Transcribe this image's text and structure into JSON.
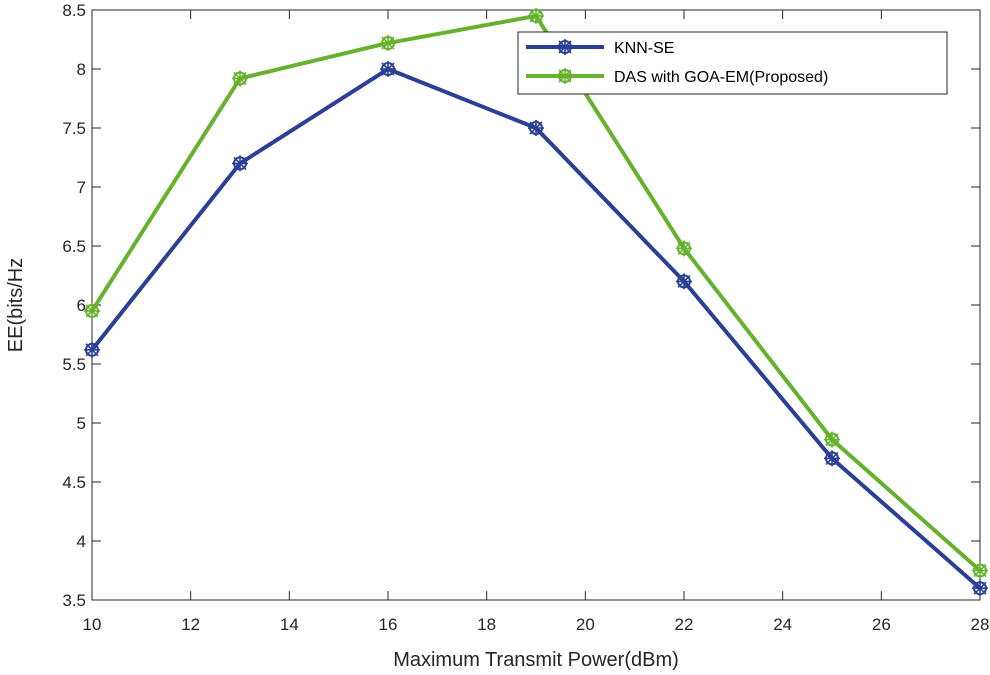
{
  "chart_data": {
    "type": "line",
    "title": "",
    "xlabel": "Maximum Transmit Power(dBm)",
    "ylabel": "EE(bits/Hz",
    "xlim": [
      10,
      28
    ],
    "ylim": [
      3.5,
      8.5
    ],
    "xticks": [
      10,
      12,
      14,
      16,
      18,
      20,
      22,
      24,
      26,
      28
    ],
    "yticks": [
      3.5,
      4,
      4.5,
      5,
      5.5,
      6,
      6.5,
      7,
      7.5,
      8,
      8.5
    ],
    "xtick_labels": [
      "10",
      "12",
      "14",
      "16",
      "18",
      "20",
      "22",
      "24",
      "26",
      "28"
    ],
    "ytick_labels": [
      "3.5",
      "4",
      "4.5",
      "5",
      "5.5",
      "6",
      "6.5",
      "7",
      "7.5",
      "8",
      "8.5"
    ],
    "grid": false,
    "legend_position": "top-right",
    "x": [
      10,
      13,
      16,
      19,
      22,
      25,
      28
    ],
    "series": [
      {
        "name": "KNN-SE",
        "color": "#2b3f96",
        "marker": "star-circle",
        "values": [
          5.62,
          7.2,
          8.0,
          7.5,
          6.2,
          4.7,
          3.6
        ]
      },
      {
        "name": "DAS with GOA-EM(Proposed)",
        "color": "#66b22f",
        "marker": "star-circle",
        "values": [
          5.95,
          7.92,
          8.22,
          8.45,
          6.48,
          4.86,
          3.75
        ]
      }
    ]
  }
}
